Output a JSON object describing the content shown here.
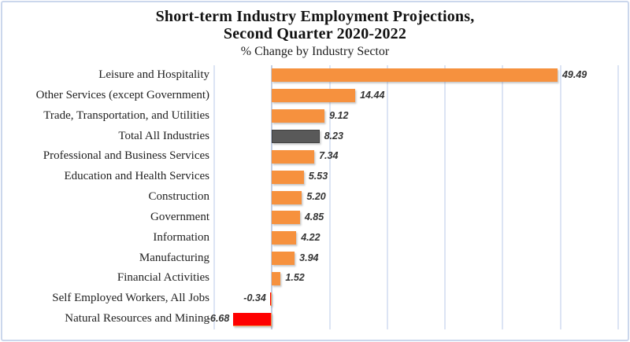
{
  "title": {
    "line1": "Short-term Industry Employment Projections,",
    "line2": "Second Quarter 2020-2022",
    "subtitle": "% Change by Industry Sector"
  },
  "chart_data": {
    "type": "bar",
    "orientation": "horizontal",
    "title": "Short-term Industry Employment Projections, Second Quarter 2020-2022",
    "subtitle": "% Change by Industry Sector",
    "categories": [
      "Leisure and Hospitality",
      "Other Services (except Government)",
      "Trade, Transportation, and Utilities",
      "Total All Industries",
      "Professional and Business Services",
      "Education and Health Services",
      "Construction",
      "Government",
      "Information",
      "Manufacturing",
      "Financial Activities",
      "Self Employed Workers, All Jobs",
      "Natural Resources and Mining"
    ],
    "values": [
      49.49,
      14.44,
      9.12,
      8.23,
      7.34,
      5.53,
      5.2,
      4.85,
      4.22,
      3.94,
      1.52,
      -0.34,
      -6.68
    ],
    "value_labels": [
      "49.49",
      "14.44",
      "9.12",
      "8.23",
      "7.34",
      "5.53",
      "5.20",
      "4.85",
      "4.22",
      "3.94",
      "1.52",
      "-0.34",
      "-6.68"
    ],
    "color_keys": [
      "positive",
      "positive",
      "positive",
      "total",
      "positive",
      "positive",
      "positive",
      "positive",
      "positive",
      "positive",
      "positive",
      "negative",
      "negative"
    ],
    "palette": {
      "positive": "#f6913e",
      "total": "#595959",
      "negative": "#fe0000"
    },
    "grid": true,
    "gridline_color": "#dce4f4",
    "xlim": [
      -10,
      60
    ],
    "tick_interval": 10,
    "legend": "none",
    "data_labels": "outside-end"
  }
}
